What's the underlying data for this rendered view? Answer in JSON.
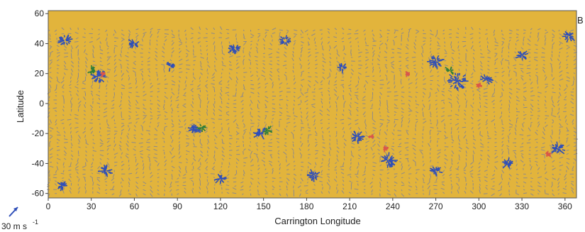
{
  "chart_data": {
    "type": "vector-field",
    "panel_label": "B",
    "xlabel": "Carrington Longitude",
    "ylabel": "Latitude",
    "xlim": [
      0,
      368
    ],
    "ylim": [
      -63,
      62
    ],
    "xticks": [
      0,
      30,
      60,
      90,
      120,
      150,
      180,
      210,
      240,
      270,
      300,
      330,
      360
    ],
    "yticks": [
      -60,
      -40,
      -20,
      0,
      20,
      40,
      60
    ],
    "data_extent": {
      "lat": [
        -60,
        50
      ],
      "lon": [
        0,
        366
      ]
    },
    "scale_arrow_label": "30 m s",
    "scale_arrow_exponent": "-1",
    "colors": {
      "background": "#e2b43c",
      "default_vector": "#8f8a8a",
      "divergence": "#2f4fb8",
      "convergence": "#d9574a",
      "green_marker": "#2f7d3b"
    },
    "features": [
      {
        "lon": 12,
        "lat": 42,
        "kind": "blue",
        "r": 7
      },
      {
        "lon": 35,
        "lat": 18,
        "kind": "blue",
        "r": 8
      },
      {
        "lon": 38,
        "lat": 20,
        "kind": "red",
        "r": 4
      },
      {
        "lon": 30,
        "lat": 22,
        "kind": "green",
        "r": 3
      },
      {
        "lon": 60,
        "lat": 40,
        "kind": "blue",
        "r": 5
      },
      {
        "lon": 85,
        "lat": 25,
        "kind": "blue",
        "r": 4
      },
      {
        "lon": 102,
        "lat": -17,
        "kind": "blue",
        "r": 6
      },
      {
        "lon": 107,
        "lat": -16,
        "kind": "green",
        "r": 3
      },
      {
        "lon": 130,
        "lat": 36,
        "kind": "blue",
        "r": 6
      },
      {
        "lon": 148,
        "lat": -20,
        "kind": "blue",
        "r": 7
      },
      {
        "lon": 153,
        "lat": -18,
        "kind": "green",
        "r": 3
      },
      {
        "lon": 165,
        "lat": 42,
        "kind": "blue",
        "r": 5
      },
      {
        "lon": 205,
        "lat": 24,
        "kind": "blue",
        "r": 4
      },
      {
        "lon": 215,
        "lat": -22,
        "kind": "blue",
        "r": 7
      },
      {
        "lon": 225,
        "lat": -22,
        "kind": "red",
        "r": 4
      },
      {
        "lon": 237,
        "lat": -38,
        "kind": "blue",
        "r": 9
      },
      {
        "lon": 235,
        "lat": -30,
        "kind": "red",
        "r": 4
      },
      {
        "lon": 250,
        "lat": 20,
        "kind": "red",
        "r": 3
      },
      {
        "lon": 270,
        "lat": 28,
        "kind": "blue",
        "r": 7
      },
      {
        "lon": 285,
        "lat": 15,
        "kind": "blue",
        "r": 11
      },
      {
        "lon": 280,
        "lat": 22,
        "kind": "green",
        "r": 3
      },
      {
        "lon": 300,
        "lat": 12,
        "kind": "red",
        "r": 5
      },
      {
        "lon": 305,
        "lat": 16,
        "kind": "blue",
        "r": 5
      },
      {
        "lon": 330,
        "lat": 32,
        "kind": "blue",
        "r": 5
      },
      {
        "lon": 355,
        "lat": -30,
        "kind": "blue",
        "r": 7
      },
      {
        "lon": 348,
        "lat": -34,
        "kind": "red",
        "r": 4
      },
      {
        "lon": 363,
        "lat": 45,
        "kind": "blue",
        "r": 5
      },
      {
        "lon": 40,
        "lat": -45,
        "kind": "blue",
        "r": 6
      },
      {
        "lon": 10,
        "lat": -55,
        "kind": "blue",
        "r": 5
      },
      {
        "lon": 120,
        "lat": -50,
        "kind": "blue",
        "r": 5
      },
      {
        "lon": 185,
        "lat": -48,
        "kind": "blue",
        "r": 6
      },
      {
        "lon": 270,
        "lat": -45,
        "kind": "blue",
        "r": 5
      },
      {
        "lon": 320,
        "lat": -40,
        "kind": "blue",
        "r": 5
      }
    ]
  }
}
